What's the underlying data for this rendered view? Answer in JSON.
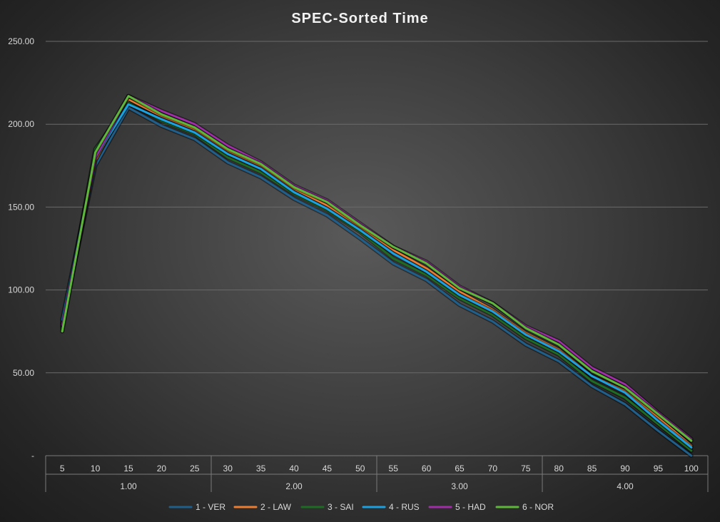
{
  "chart_data": {
    "type": "line",
    "title": "SPEC-Sorted Time",
    "xlabel": "",
    "ylabel": "",
    "ylim": [
      0,
      250
    ],
    "yticks": [
      0,
      50,
      100,
      150,
      200,
      250
    ],
    "ytick_labels": [
      "-",
      "50.00",
      "100.00",
      "150.00",
      "200.00",
      "250.00"
    ],
    "categories": [
      "5",
      "10",
      "15",
      "20",
      "25",
      "30",
      "35",
      "40",
      "45",
      "50",
      "55",
      "60",
      "65",
      "70",
      "75",
      "80",
      "85",
      "90",
      "95",
      "100"
    ],
    "groups": [
      {
        "label": "1.00",
        "count": 5
      },
      {
        "label": "2.00",
        "count": 5
      },
      {
        "label": "3.00",
        "count": 5
      },
      {
        "label": "4.00",
        "count": 5
      }
    ],
    "grid": true,
    "legend_position": "bottom",
    "series": [
      {
        "name": "1 - VER",
        "color": "#1f5f8b",
        "values": [
          80,
          175,
          210,
          199,
          191,
          177,
          168,
          155,
          145,
          131,
          116,
          106,
          91,
          81,
          67,
          57,
          42,
          31,
          15,
          0
        ]
      },
      {
        "name": "2 - LAW",
        "color": "#ed7d31",
        "values": [
          78,
          178,
          215,
          205,
          197,
          184,
          175,
          161,
          151,
          138,
          124,
          113,
          99,
          88,
          74,
          64,
          48,
          39,
          23,
          6
        ]
      },
      {
        "name": "3 - SAI",
        "color": "#1e6b24",
        "values": [
          77,
          185,
          213,
          202,
          194,
          180,
          171,
          158,
          148,
          135,
          119,
          109,
          95,
          85,
          71,
          61,
          45,
          35,
          19,
          3
        ]
      },
      {
        "name": "4 - RUS",
        "color": "#1ba1e2",
        "values": [
          82,
          180,
          212,
          203,
          195,
          182,
          173,
          159,
          149,
          136,
          122,
          111,
          97,
          87,
          73,
          63,
          48,
          38,
          21,
          5
        ]
      },
      {
        "name": "5 - HAD",
        "color": "#a12ea8",
        "values": [
          79,
          180,
          217,
          208,
          200,
          187,
          177,
          163,
          154,
          140,
          126,
          117,
          102,
          92,
          78,
          69,
          53,
          43,
          26,
          10
        ]
      },
      {
        "name": "6 - NOR",
        "color": "#5db83a",
        "values": [
          75,
          183,
          217,
          206,
          198,
          185,
          176,
          162,
          153,
          139,
          126,
          116,
          101,
          92,
          77,
          67,
          51,
          41,
          25,
          9
        ]
      }
    ]
  }
}
